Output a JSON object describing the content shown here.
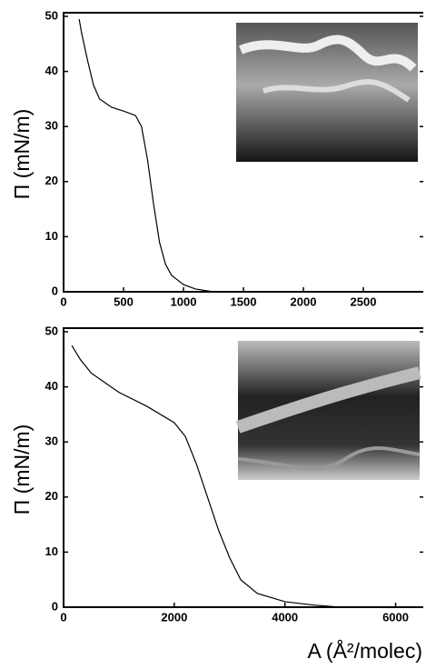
{
  "chart_data": [
    {
      "type": "line",
      "y_label": "Π (mN/m)",
      "xlim": [
        0,
        3000
      ],
      "xticks": [
        0,
        500,
        1000,
        1500,
        2000,
        2500
      ],
      "ylim": [
        0,
        50
      ],
      "yticks": [
        0,
        10,
        20,
        30,
        40,
        50
      ],
      "series": [
        {
          "color": "#000000",
          "x": [
            130,
            150,
            200,
            250,
            300,
            400,
            500,
            600,
            650,
            700,
            750,
            800,
            850,
            900,
            1000,
            1100,
            1250
          ],
          "values": [
            49.5,
            47,
            42,
            37.5,
            35,
            33.5,
            32.8,
            32,
            30,
            24,
            16,
            9,
            5,
            3,
            1.3,
            0.5,
            0
          ]
        }
      ]
    },
    {
      "type": "line",
      "y_label": "Π (mN/m)",
      "x_label": "A (Å²/molec)",
      "xlim": [
        0,
        6500
      ],
      "xticks": [
        0,
        2000,
        4000,
        6000
      ],
      "ylim": [
        0,
        50
      ],
      "yticks": [
        0,
        10,
        20,
        30,
        40,
        50
      ],
      "series": [
        {
          "color": "#000000",
          "x": [
            150,
            300,
            500,
            1000,
            1500,
            2000,
            2200,
            2400,
            2600,
            2800,
            3000,
            3200,
            3500,
            4000,
            4500,
            5000
          ],
          "values": [
            47.5,
            45,
            42.5,
            39,
            36.5,
            33.5,
            31,
            26,
            20,
            14,
            9,
            5,
            2.5,
            1,
            0.4,
            0
          ]
        }
      ]
    }
  ]
}
